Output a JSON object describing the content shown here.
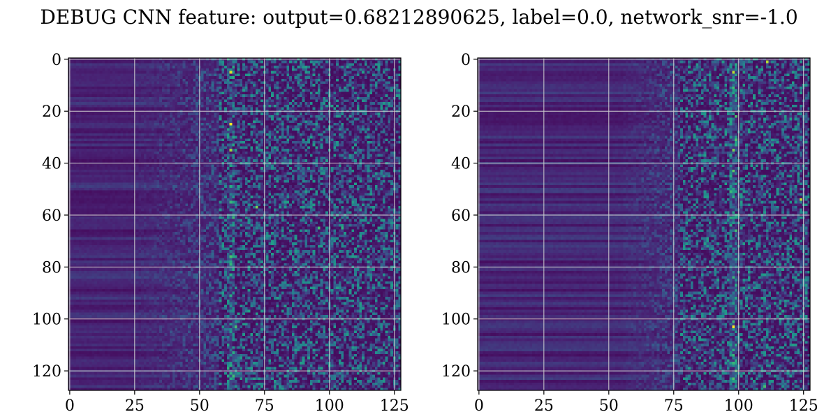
{
  "title": "DEBUG CNN feature: output=0.68212890625, label=0.0, network_snr=-1.0",
  "colormap": "viridis",
  "colors": {
    "viridis_low": "#440154",
    "viridis_mid_low": "#3b528b",
    "viridis_mid": "#21918c",
    "viridis_mid_high": "#5ec962",
    "viridis_high": "#fde725",
    "grid": "#d0d0d0"
  },
  "chart_data": [
    {
      "type": "heatmap",
      "title": "",
      "xlabel": "",
      "ylabel": "",
      "shape": [
        128,
        128
      ],
      "xlim": [
        -0.5,
        127.5
      ],
      "ylim": [
        127.5,
        -0.5
      ],
      "xticks": [
        0,
        25,
        50,
        75,
        100,
        125
      ],
      "yticks": [
        0,
        20,
        40,
        60,
        80,
        100,
        120
      ],
      "xtick_labels": [
        "0",
        "25",
        "50",
        "75",
        "100",
        "125"
      ],
      "ytick_labels": [
        "0",
        "20",
        "40",
        "60",
        "80",
        "100",
        "120"
      ],
      "grid": true,
      "value_range": [
        0,
        1
      ],
      "structure": {
        "quiet_region_columns": [
          0,
          24
        ],
        "transition_columns": [
          25,
          58
        ],
        "active_region_columns": [
          58,
          127
        ],
        "hot_column": 62
      },
      "hot_spots": [
        {
          "x": 62,
          "y": 5,
          "v": 0.95
        },
        {
          "x": 62,
          "y": 25,
          "v": 1.0
        },
        {
          "x": 62,
          "y": 35,
          "v": 0.85
        },
        {
          "x": 72,
          "y": 57,
          "v": 0.8
        },
        {
          "x": 96,
          "y": 65,
          "v": 0.7
        },
        {
          "x": 105,
          "y": 65,
          "v": 0.65
        },
        {
          "x": 64,
          "y": 103,
          "v": 0.7
        }
      ]
    },
    {
      "type": "heatmap",
      "title": "",
      "xlabel": "",
      "ylabel": "",
      "shape": [
        128,
        128
      ],
      "xlim": [
        -0.5,
        127.5
      ],
      "ylim": [
        127.5,
        -0.5
      ],
      "xticks": [
        0,
        25,
        50,
        75,
        100,
        125
      ],
      "yticks": [
        0,
        20,
        40,
        60,
        80,
        100,
        120
      ],
      "xtick_labels": [
        "0",
        "25",
        "50",
        "75",
        "100",
        "125"
      ],
      "ytick_labels": [
        "0",
        "20",
        "40",
        "60",
        "80",
        "100",
        "120"
      ],
      "grid": true,
      "value_range": [
        0,
        1
      ],
      "structure": {
        "quiet_region_columns": [
          0,
          55
        ],
        "transition_columns": [
          56,
          78
        ],
        "active_region_columns": [
          78,
          127
        ],
        "hot_column": 98
      },
      "hot_spots": [
        {
          "x": 111,
          "y": 1,
          "v": 0.9
        },
        {
          "x": 98,
          "y": 5,
          "v": 0.9
        },
        {
          "x": 98,
          "y": 35,
          "v": 0.8
        },
        {
          "x": 98,
          "y": 43,
          "v": 0.75
        },
        {
          "x": 124,
          "y": 54,
          "v": 0.9
        },
        {
          "x": 98,
          "y": 103,
          "v": 1.0
        },
        {
          "x": 110,
          "y": 126,
          "v": 0.7
        }
      ]
    }
  ]
}
